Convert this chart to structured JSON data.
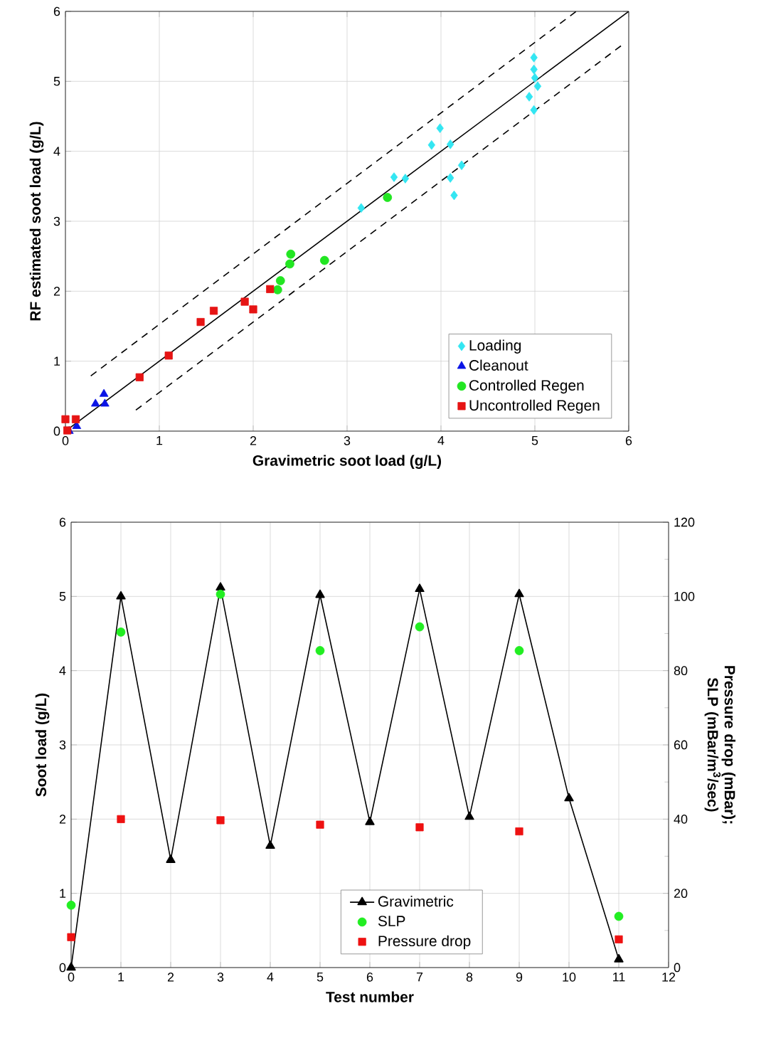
{
  "chart_data": [
    {
      "type": "scatter",
      "xlabel": "Gravimetric soot load (g/L)",
      "ylabel": "RF estimated soot load (g/L)",
      "xlim": [
        0,
        6
      ],
      "ylim": [
        0,
        6
      ],
      "xticks": [
        0,
        1,
        2,
        3,
        4,
        5,
        6
      ],
      "yticks": [
        0,
        1,
        2,
        3,
        4,
        5,
        6
      ],
      "grid": true,
      "legend": "bottom right",
      "series": [
        {
          "name": "Loading",
          "color": "#33e6f2",
          "marker": "diamond",
          "x": [
            4.99,
            4.99,
            5.0,
            5.03,
            4.94,
            4.99,
            3.99,
            3.9,
            4.1,
            4.22,
            4.1,
            4.14,
            3.5,
            3.62,
            3.15
          ],
          "values": [
            5.34,
            5.17,
            5.05,
            4.93,
            4.78,
            4.59,
            4.33,
            4.09,
            4.1,
            3.8,
            3.62,
            3.37,
            3.63,
            3.61,
            3.19
          ]
        },
        {
          "name": "Cleanout",
          "color": "#0a14e6",
          "marker": "triangle",
          "x": [
            0.41,
            0.32,
            0.42,
            0.12,
            0.04
          ],
          "values": [
            0.53,
            0.39,
            0.39,
            0.07,
            0.0
          ]
        },
        {
          "name": "Controlled Regen",
          "color": "#22e622",
          "marker": "circle",
          "x": [
            3.43,
            2.4,
            2.39,
            2.76,
            2.29,
            2.26
          ],
          "values": [
            3.34,
            2.53,
            2.39,
            2.44,
            2.15,
            2.02
          ]
        },
        {
          "name": "Uncontrolled Regen",
          "color": "#e61414",
          "marker": "square",
          "x": [
            0.0,
            0.11,
            0.02,
            0.79,
            1.1,
            1.44,
            1.58,
            1.91,
            2.0,
            2.18
          ],
          "values": [
            0.17,
            0.17,
            0.01,
            0.77,
            1.08,
            1.56,
            1.72,
            1.85,
            1.74,
            2.03
          ]
        },
        {
          "type": "line",
          "color": "#000000",
          "marker": "none",
          "line_style": "solid",
          "x": [
            0,
            6
          ],
          "values": [
            0,
            6
          ]
        },
        {
          "type": "line",
          "color": "#000000",
          "marker": "none",
          "line_style": "dashed",
          "x": [
            0.27,
            5.44
          ],
          "values": [
            0.79,
            6.0
          ]
        },
        {
          "type": "line",
          "color": "#000000",
          "marker": "none",
          "line_style": "dashed",
          "x": [
            0.75,
            5.94
          ],
          "values": [
            0.3,
            5.53
          ]
        }
      ]
    },
    {
      "type": "line",
      "xlabel": "Test number",
      "ylabel": "Soot load (g/L)",
      "y2label": "Pressure drop (mBar); SLP (mBar/m$^{3}$/sec)",
      "xlim": [
        0,
        12
      ],
      "ylim": [
        0,
        6
      ],
      "y2lim": [
        0,
        120
      ],
      "xticks": [
        0,
        1,
        2,
        3,
        4,
        5,
        6,
        7,
        8,
        9,
        10,
        11,
        12
      ],
      "yticks": [
        0,
        1,
        2,
        3,
        4,
        5,
        6
      ],
      "y2ticks": [
        0,
        20,
        40,
        60,
        80,
        100,
        120
      ],
      "grid": true,
      "legend": "bottom",
      "series": [
        {
          "name": "Gravimetric",
          "color": "#000000",
          "marker": "triangle",
          "line_style": "solid",
          "axis": "y",
          "x": [
            0,
            1,
            2,
            3,
            4,
            5,
            6,
            7,
            8,
            9,
            10,
            11
          ],
          "values": [
            0.0,
            5.0,
            1.45,
            5.12,
            1.64,
            5.02,
            1.96,
            5.1,
            2.03,
            5.03,
            2.28,
            0.11
          ]
        },
        {
          "name": "SLP",
          "type": "scatter",
          "color": "#22ee22",
          "marker": "circle",
          "axis": "y2",
          "x": [
            0,
            1,
            3,
            5,
            7,
            9,
            11
          ],
          "values": [
            16.8,
            90.4,
            100.6,
            85.4,
            91.8,
            85.4,
            13.8
          ]
        },
        {
          "name": "Pressure drop",
          "type": "scatter",
          "color": "#ee1111",
          "marker": "square",
          "axis": "y2",
          "x": [
            0,
            1,
            3,
            5,
            7,
            9,
            11
          ],
          "values": [
            8.2,
            40.0,
            39.7,
            38.5,
            37.8,
            36.7,
            7.6
          ]
        }
      ]
    }
  ]
}
